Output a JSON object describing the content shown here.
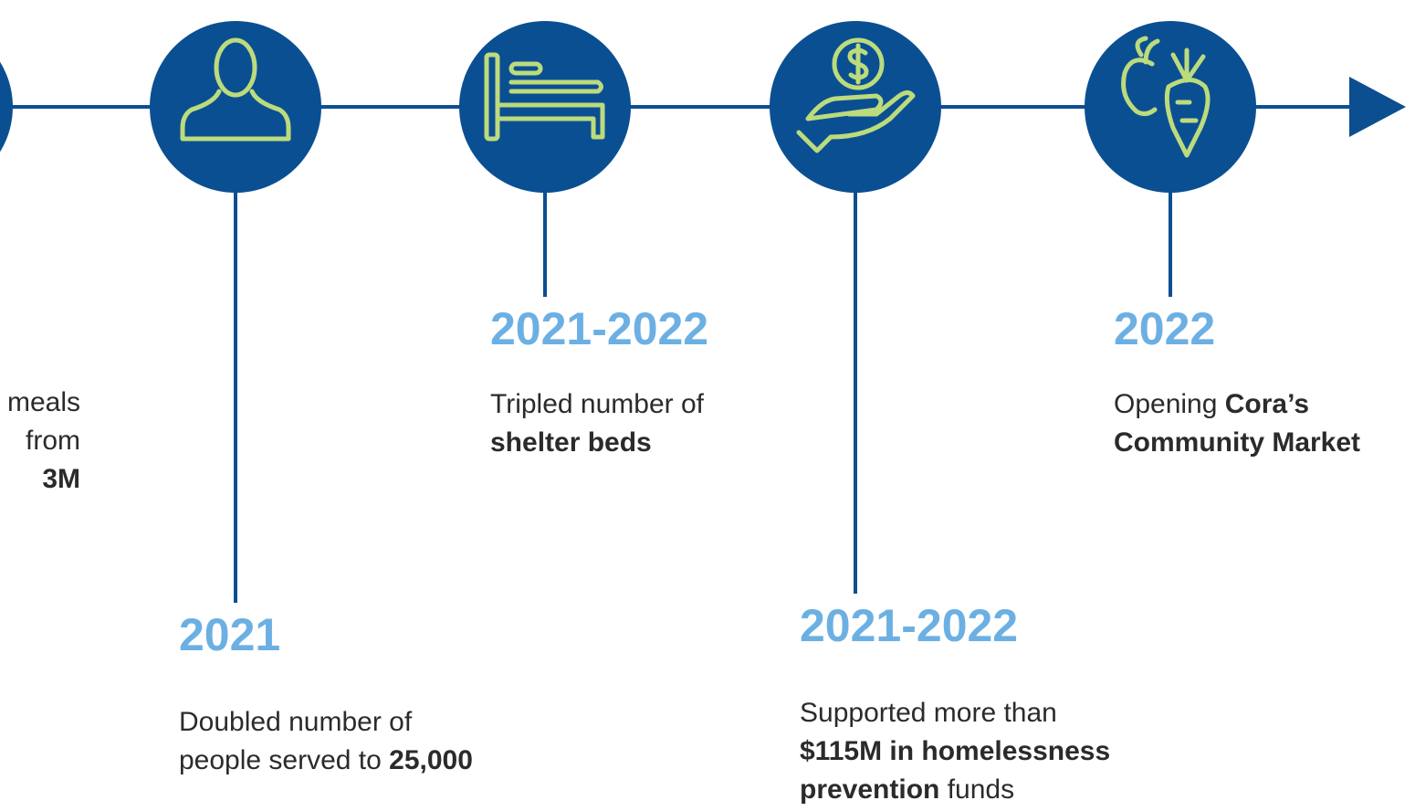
{
  "timeline": {
    "items": [
      {
        "lines": [
          [
            {
              "text": "meals"
            }
          ],
          [
            {
              "text": "from"
            }
          ],
          [
            {
              "text": "3M",
              "bold": true
            }
          ]
        ]
      },
      {
        "year": "2021",
        "lines": [
          [
            {
              "text": "Doubled number of"
            }
          ],
          [
            {
              "text": "people served to "
            },
            {
              "text": "25,000",
              "bold": true
            }
          ]
        ]
      },
      {
        "year": "2021-2022",
        "lines": [
          [
            {
              "text": "Tripled number of"
            }
          ],
          [
            {
              "text": "shelter beds",
              "bold": true
            }
          ]
        ]
      },
      {
        "year": "2021-2022",
        "lines": [
          [
            {
              "text": "Supported more than"
            }
          ],
          [
            {
              "text": "$115M in homelessness",
              "bold": true
            }
          ],
          [
            {
              "text": "prevention",
              "bold": true
            },
            {
              "text": " funds"
            }
          ]
        ]
      },
      {
        "year": "2022",
        "lines": [
          [
            {
              "text": "Opening "
            },
            {
              "text": "Cora’s",
              "bold": true
            }
          ],
          [
            {
              "text": "Community Market",
              "bold": true
            }
          ]
        ]
      }
    ]
  }
}
